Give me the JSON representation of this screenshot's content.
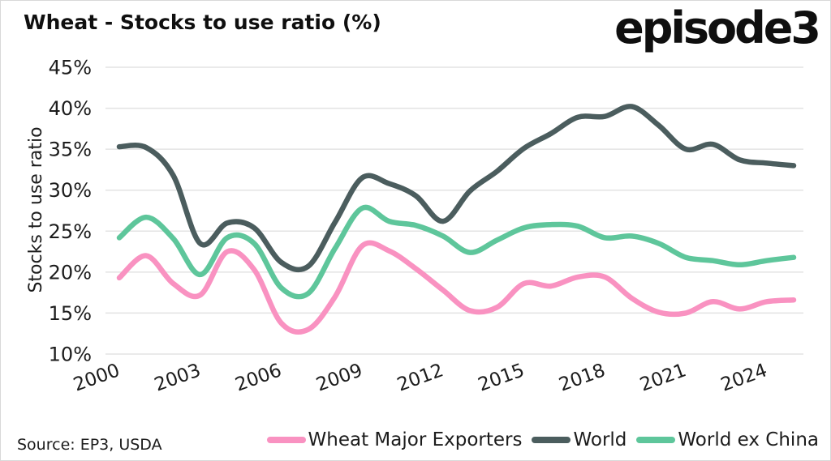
{
  "header": {
    "title": "Wheat - Stocks to use ratio (%)",
    "logo": "episode3"
  },
  "source": {
    "label": "Source: EP3, USDA"
  },
  "chart_data": {
    "type": "line",
    "title": "Wheat - Stocks to use ratio (%)",
    "ylabel": "Stocks to use ratio",
    "xlabel": "",
    "ylim": [
      10,
      45
    ],
    "ytick_step": 5,
    "ytick_suffix": "%",
    "xticks": [
      2000,
      2003,
      2006,
      2009,
      2012,
      2015,
      2018,
      2021,
      2024
    ],
    "grid": true,
    "grid_color": "#e3e3e3",
    "legend_position": "bottom-right",
    "text_color": "#1c1c1c",
    "x": [
      2000,
      2001,
      2002,
      2003,
      2004,
      2005,
      2006,
      2007,
      2008,
      2009,
      2010,
      2011,
      2012,
      2013,
      2014,
      2015,
      2016,
      2017,
      2018,
      2019,
      2020,
      2021,
      2022,
      2023,
      2024,
      2025
    ],
    "series": [
      {
        "name": "Wheat Major Exporters",
        "color": "#f992c1",
        "values": [
          19.3,
          22.0,
          18.6,
          17.2,
          22.5,
          20.3,
          13.8,
          13.0,
          17.0,
          23.2,
          22.6,
          20.4,
          17.8,
          15.3,
          15.7,
          18.6,
          18.3,
          19.4,
          19.4,
          16.8,
          15.1,
          15.0,
          16.4,
          15.5,
          16.4,
          16.6
        ]
      },
      {
        "name": "World",
        "color": "#4b5d5e",
        "values": [
          35.3,
          35.2,
          31.8,
          23.5,
          26.0,
          25.4,
          21.2,
          20.7,
          26.1,
          31.5,
          30.8,
          29.3,
          26.2,
          29.9,
          32.3,
          35.1,
          36.9,
          38.9,
          39.0,
          40.2,
          37.9,
          35.0,
          35.6,
          33.7,
          33.3,
          33.0
        ]
      },
      {
        "name": "World ex China",
        "color": "#5ec69b",
        "values": [
          24.2,
          26.7,
          24.1,
          19.7,
          24.2,
          23.5,
          18.1,
          17.4,
          22.9,
          27.8,
          26.2,
          25.7,
          24.4,
          22.4,
          23.9,
          25.4,
          25.8,
          25.6,
          24.2,
          24.4,
          23.5,
          21.8,
          21.4,
          20.9,
          21.4,
          21.8
        ]
      }
    ]
  }
}
